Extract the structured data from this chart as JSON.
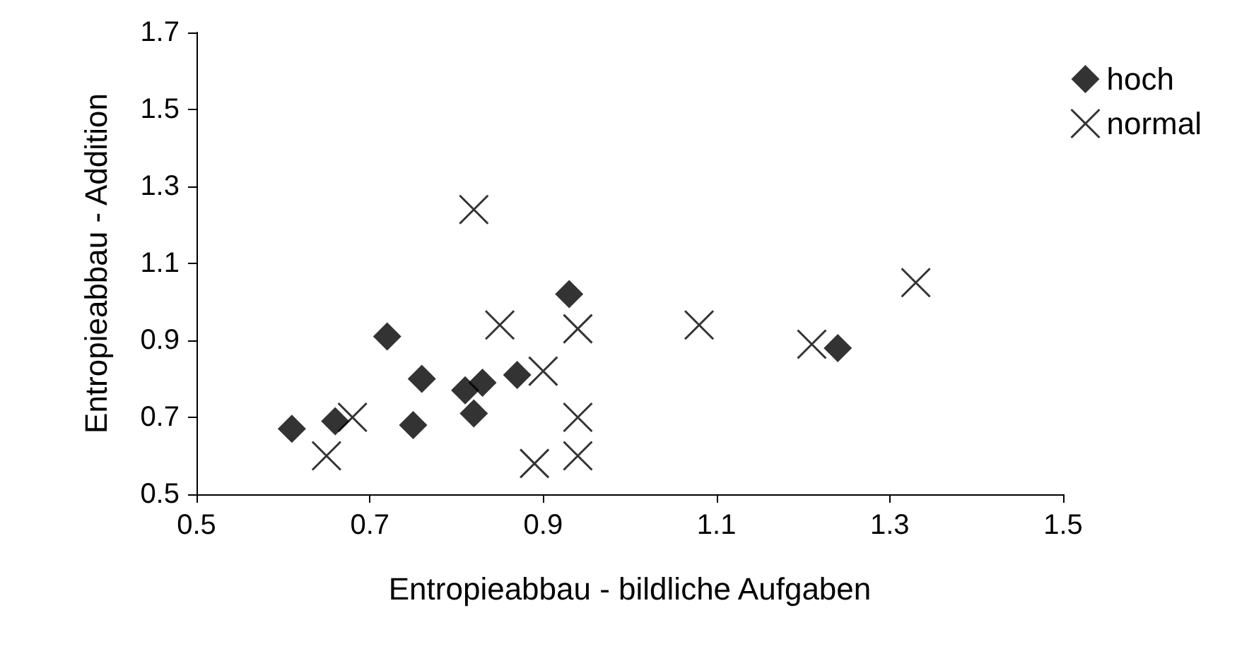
{
  "chart_data": {
    "type": "scatter",
    "xlabel": "Entropieabbau - bildliche Aufgaben",
    "ylabel": "Entropieabbau - Addition",
    "xlim": [
      0.5,
      1.5
    ],
    "xticks": [
      0.5,
      0.7,
      0.9,
      1.1,
      1.3,
      1.5
    ],
    "ylim": [
      0.5,
      1.7
    ],
    "yticks": [
      0.5,
      0.7,
      0.9,
      1.1,
      1.3,
      1.5,
      1.7
    ],
    "grid": false,
    "legend": "top right",
    "series": [
      {
        "name": "hoch",
        "color": "#000000",
        "marker": "diamond",
        "x": [
          0.61,
          0.66,
          0.72,
          0.76,
          0.75,
          0.81,
          0.83,
          0.82,
          0.87,
          0.93,
          1.24
        ],
        "values": [
          0.67,
          0.69,
          0.91,
          0.8,
          0.68,
          0.77,
          0.79,
          0.71,
          0.81,
          1.02,
          0.88
        ]
      },
      {
        "name": "normal",
        "color": "#000000",
        "marker": "cross",
        "x": [
          0.82,
          0.85,
          0.94,
          0.68,
          0.65,
          0.9,
          0.94,
          0.89,
          0.94,
          1.08,
          1.21,
          1.33
        ],
        "values": [
          1.24,
          0.94,
          0.93,
          0.7,
          0.6,
          0.82,
          0.7,
          0.58,
          0.6,
          0.94,
          0.89,
          1.05
        ]
      }
    ]
  }
}
